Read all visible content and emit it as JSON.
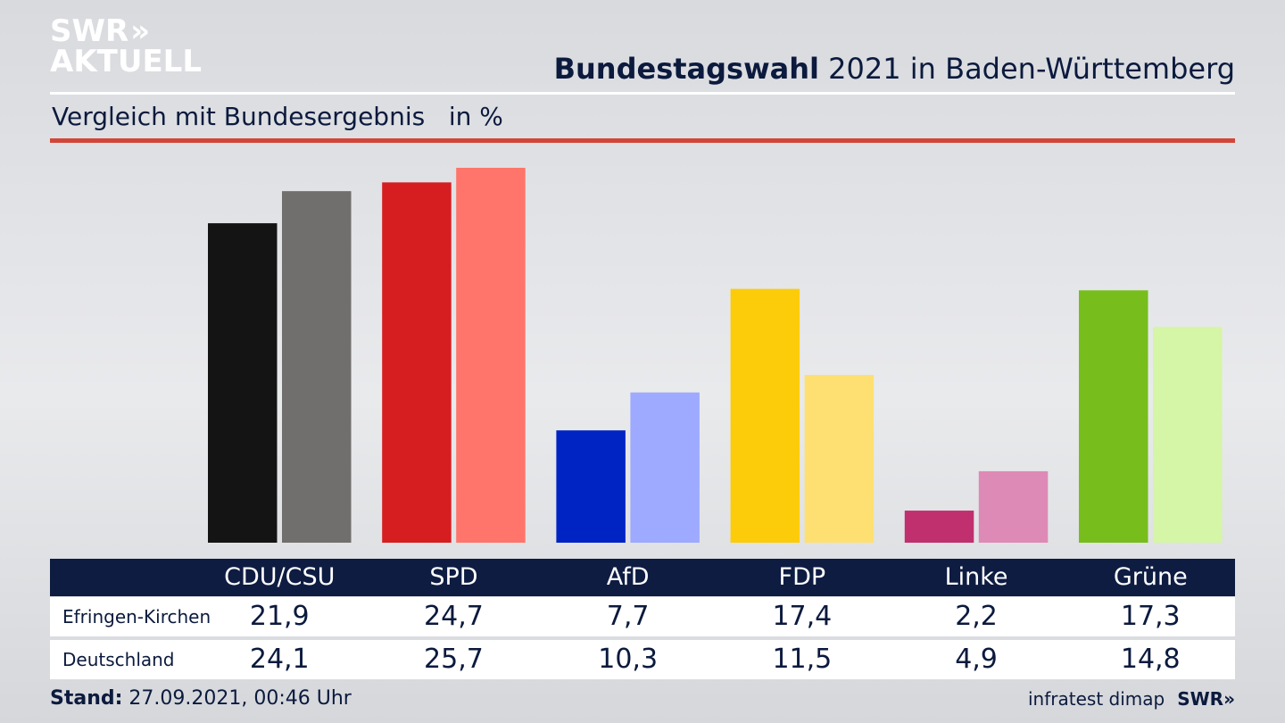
{
  "brand": {
    "line1": "SWR",
    "line1_icon": "double-chevron-icon",
    "line1_chevrons": "»",
    "line2": "AKTUELL"
  },
  "title_bold": "Bundestagswahl",
  "title_rest": " 2021 in Baden-Württemberg",
  "subtitle": "Vergleich mit Bundesergebnis   in %",
  "chart_data": {
    "type": "bar",
    "categories": [
      "CDU/CSU",
      "SPD",
      "AfD",
      "FDP",
      "Linke",
      "Grüne"
    ],
    "series": [
      {
        "name": "Efringen-Kirchen",
        "values": [
          21.9,
          24.7,
          7.7,
          17.4,
          2.2,
          17.3
        ],
        "colors": [
          "#141414",
          "#d61e20",
          "#0024c4",
          "#fccc0b",
          "#c0306f",
          "#77bd1c"
        ]
      },
      {
        "name": "Deutschland",
        "values": [
          24.1,
          25.7,
          10.3,
          11.5,
          4.9,
          14.8
        ],
        "colors": [
          "#716f6d",
          "#ff756b",
          "#9eaaff",
          "#fde071",
          "#de8ab6",
          "#d5f5a7"
        ]
      }
    ],
    "ylim": [
      0,
      25.7
    ],
    "grid": false
  },
  "table": {
    "rows": [
      {
        "label": "Efringen-Kirchen",
        "values": [
          "21,9",
          "24,7",
          "7,7",
          "17,4",
          "2,2",
          "17,3"
        ]
      },
      {
        "label": "Deutschland",
        "values": [
          "24,1",
          "25,7",
          "10,3",
          "11,5",
          "4,9",
          "14,8"
        ]
      }
    ]
  },
  "footer": {
    "stand_label": "Stand:",
    "stand_value": " 27.09.2021, 00:46 Uhr",
    "source": "infratest dimap",
    "brand": "SWR»"
  }
}
